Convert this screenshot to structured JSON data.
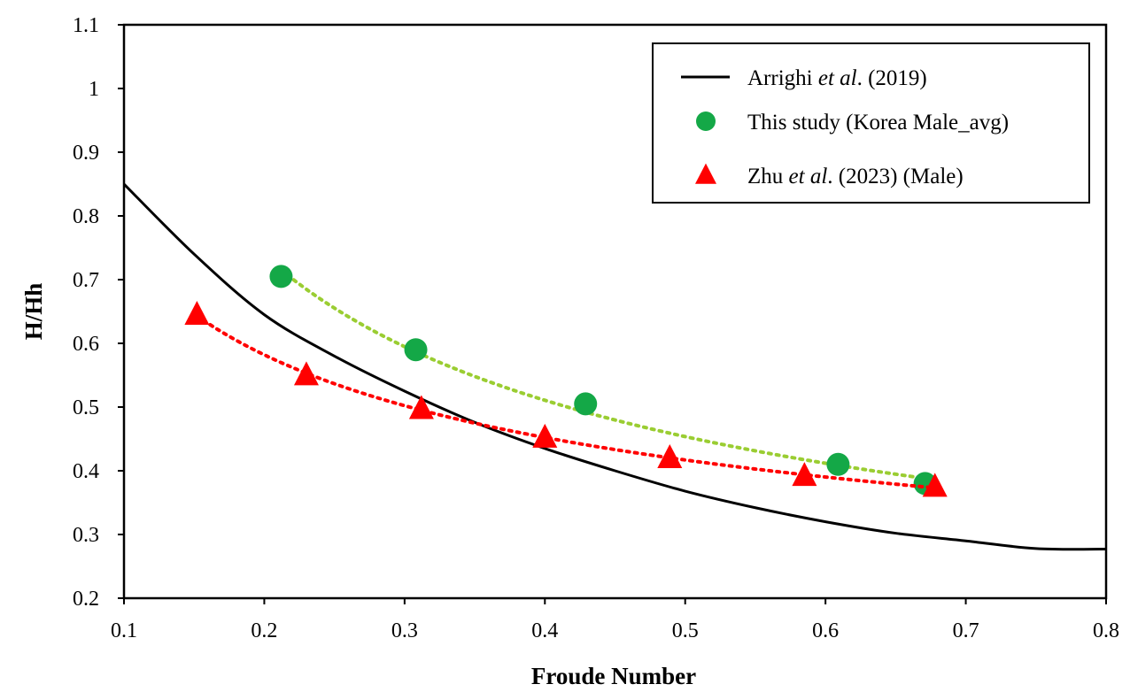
{
  "chart_data": {
    "type": "scatter",
    "title": "",
    "xlabel": "Froude Number",
    "ylabel": "H/Hh",
    "xlim": [
      0.1,
      0.8
    ],
    "ylim": [
      0.2,
      1.1
    ],
    "xticks": [
      "0.1",
      "0.2",
      "0.3",
      "0.4",
      "0.5",
      "0.6",
      "0.7",
      "0.8"
    ],
    "yticks": [
      "0.2",
      "0.3",
      "0.4",
      "0.5",
      "0.6",
      "0.7",
      "0.8",
      "0.9",
      "1",
      "1.1"
    ],
    "grid": false,
    "legend_position": "top-right",
    "series": [
      {
        "name": "Arrighi et al. (2019)",
        "name_parts": [
          {
            "text": "Arrighi ",
            "italic": false
          },
          {
            "text": "et al",
            "italic": true
          },
          {
            "text": ". (2019)",
            "italic": false
          }
        ],
        "kind": "line",
        "color": "#000000",
        "x": [
          0.1,
          0.15,
          0.2,
          0.25,
          0.3,
          0.35,
          0.4,
          0.45,
          0.5,
          0.55,
          0.6,
          0.65,
          0.7,
          0.75,
          0.8
        ],
        "y": [
          0.85,
          0.74,
          0.645,
          0.58,
          0.525,
          0.476,
          0.435,
          0.4,
          0.368,
          0.342,
          0.32,
          0.302,
          0.29,
          0.278,
          0.277
        ]
      },
      {
        "name": "This study (Korea Male_avg)",
        "name_parts": [
          {
            "text": "This study (Korea Male_avg)",
            "italic": false
          }
        ],
        "kind": "scatter",
        "marker": "circle",
        "color": "#14a847",
        "trend_color": "#9acd32",
        "x": [
          0.212,
          0.308,
          0.429,
          0.609,
          0.671
        ],
        "y": [
          0.705,
          0.59,
          0.505,
          0.41,
          0.38
        ]
      },
      {
        "name": "Zhu et al. (2023) (Male)",
        "name_parts": [
          {
            "text": "Zhu ",
            "italic": false
          },
          {
            "text": "et al",
            "italic": true
          },
          {
            "text": ". (2023) (Male)",
            "italic": false
          }
        ],
        "kind": "scatter",
        "marker": "triangle",
        "color": "#ff0000",
        "trend_color": "#ff0000",
        "x": [
          0.152,
          0.23,
          0.312,
          0.4,
          0.489,
          0.585,
          0.678
        ],
        "y": [
          0.645,
          0.55,
          0.497,
          0.452,
          0.42,
          0.392,
          0.375
        ]
      }
    ]
  }
}
